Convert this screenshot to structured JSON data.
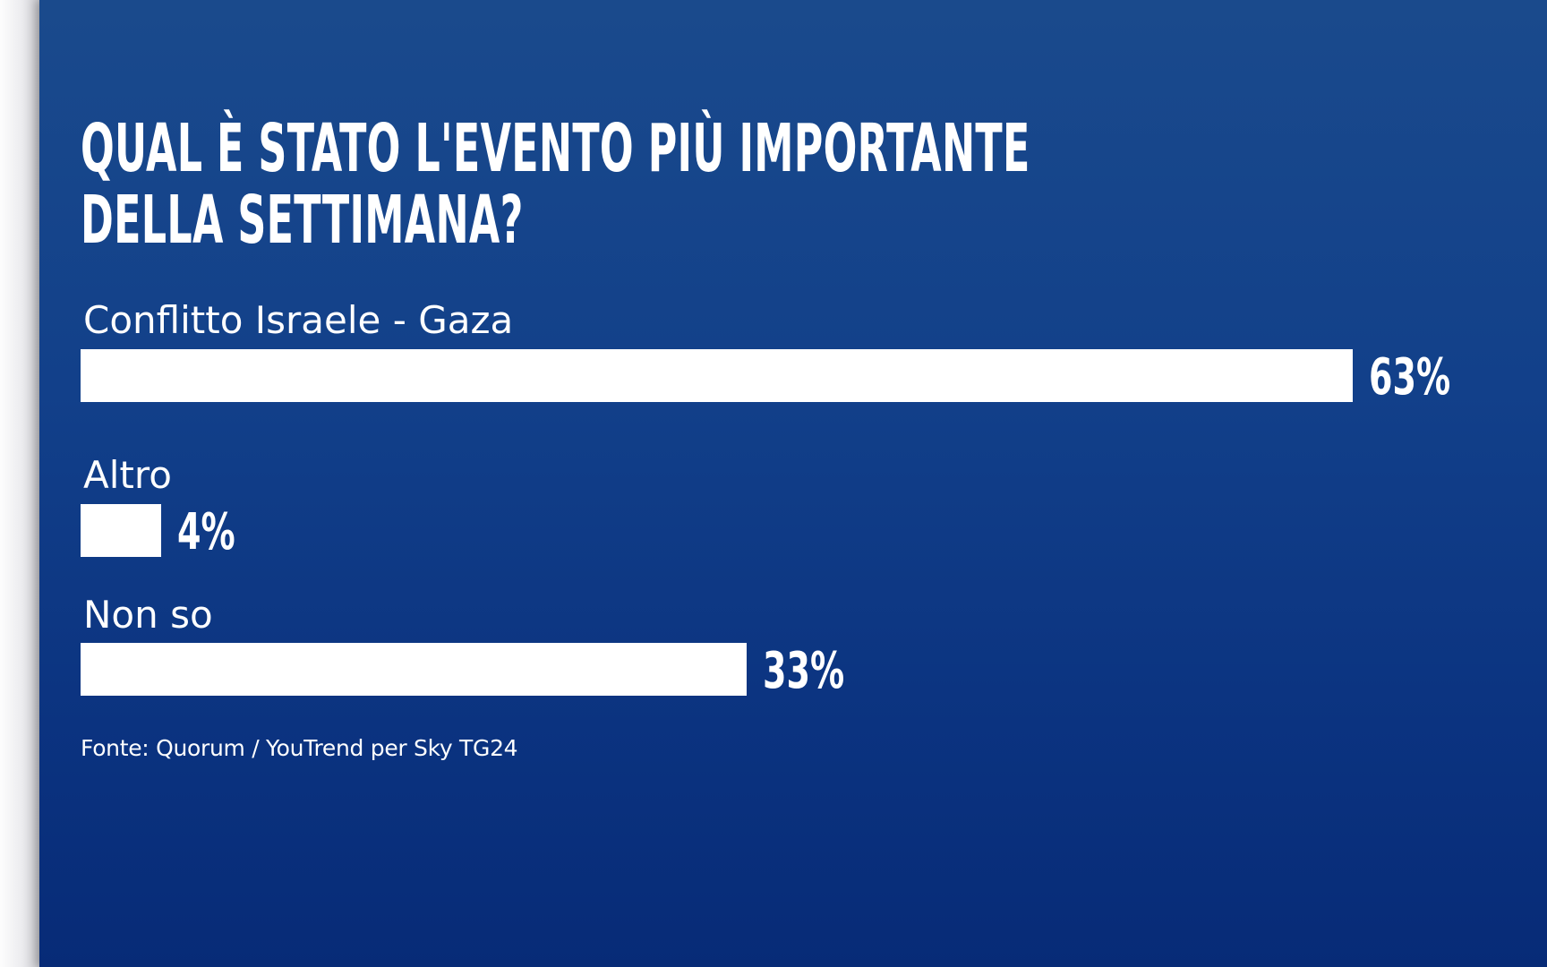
{
  "chart_data": {
    "type": "bar",
    "orientation": "horizontal",
    "title": "QUAL È STATO L'EVENTO PIÙ IMPORTANTE DELLA SETTIMANA?",
    "title_lines": [
      "QUAL È STATO L'EVENTO PIÙ IMPORTANTE",
      "DELLA SETTIMANA?"
    ],
    "categories": [
      "Conflitto Israele - Gaza",
      "Altro",
      "Non so"
    ],
    "values": [
      63,
      4,
      33
    ],
    "value_labels": [
      "63%",
      "4%",
      "33%"
    ],
    "unit": "%",
    "xlim": [
      0,
      63
    ],
    "grid": false,
    "legend": "none",
    "source": "Fonte: Quorum / YouTrend per Sky TG24"
  },
  "colors": {
    "background_top": "#1a4a8c",
    "background_bottom": "#072b77",
    "bar": "#ffffff",
    "text": "#ffffff"
  }
}
